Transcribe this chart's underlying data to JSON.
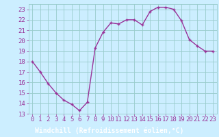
{
  "x": [
    0,
    1,
    2,
    3,
    4,
    5,
    6,
    7,
    8,
    9,
    10,
    11,
    12,
    13,
    14,
    15,
    16,
    17,
    18,
    19,
    20,
    21,
    22,
    23
  ],
  "y": [
    18.0,
    17.0,
    15.9,
    15.0,
    14.3,
    13.9,
    13.3,
    14.1,
    19.3,
    20.8,
    21.7,
    21.6,
    22.0,
    22.0,
    21.5,
    22.8,
    23.2,
    23.2,
    23.0,
    21.9,
    20.1,
    19.5,
    19.0,
    19.0
  ],
  "line_color": "#993399",
  "marker": "+",
  "bg_color": "#cceeff",
  "grid_color": "#99cccc",
  "xlabel": "Windchill (Refroidissement éolien,°C)",
  "xlabel_bg": "#993399",
  "xlabel_text_color": "#ffffff",
  "tick_color": "#993399",
  "ylim": [
    13,
    23.5
  ],
  "xlim": [
    -0.5,
    23.5
  ],
  "yticks": [
    13,
    14,
    15,
    16,
    17,
    18,
    19,
    20,
    21,
    22,
    23
  ],
  "xticks": [
    0,
    1,
    2,
    3,
    4,
    5,
    6,
    7,
    8,
    9,
    10,
    11,
    12,
    13,
    14,
    15,
    16,
    17,
    18,
    19,
    20,
    21,
    22,
    23
  ],
  "marker_size": 3,
  "line_width": 1.0,
  "font_size_axis": 6.5,
  "font_size_xlabel": 7.0
}
